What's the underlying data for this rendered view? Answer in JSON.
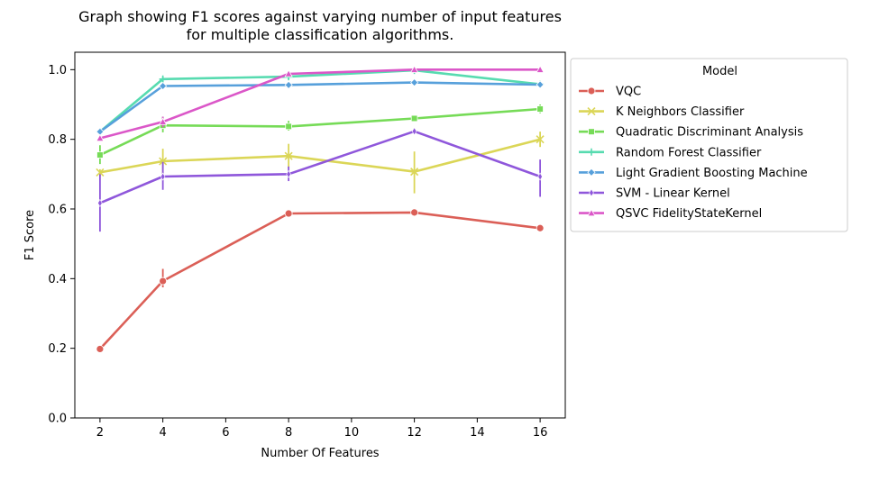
{
  "chart_data": {
    "type": "line",
    "title": "Graph showing F1 scores against varying number of input features\nfor multiple classification algorithms.",
    "xlabel": "Number Of Features",
    "ylabel": "F1 Score",
    "xlim": [
      1.2,
      16.8
    ],
    "ylim": [
      0.0,
      1.05
    ],
    "xticks": [
      2,
      4,
      6,
      8,
      10,
      12,
      14,
      16
    ],
    "yticks": [
      0.0,
      0.2,
      0.4,
      0.6,
      0.8,
      1.0
    ],
    "x": [
      2,
      4,
      8,
      12,
      16
    ],
    "legend": {
      "title": "Model",
      "placement": "outside-right-top"
    },
    "series": [
      {
        "name": "VQC",
        "color": "#db5f57",
        "marker": "circle",
        "values": [
          0.198,
          0.393,
          0.587,
          0.59,
          0.545
        ],
        "err": [
          [
            0.19,
            0.207
          ],
          [
            0.375,
            0.428
          ],
          [
            0.581,
            0.592
          ],
          [
            0.585,
            0.595
          ],
          [
            0.54,
            0.55
          ]
        ]
      },
      {
        "name": "K Neighbors Classifier",
        "color": "#dbd657",
        "marker": "x",
        "values": [
          0.705,
          0.737,
          0.752,
          0.707,
          0.8
        ],
        "err": [
          [
            0.694,
            0.714
          ],
          [
            0.7,
            0.773
          ],
          [
            0.717,
            0.787
          ],
          [
            0.645,
            0.765
          ],
          [
            0.778,
            0.822
          ]
        ]
      },
      {
        "name": "Quadratic Discriminant Analysis",
        "color": "#76db57",
        "marker": "square",
        "values": [
          0.755,
          0.84,
          0.837,
          0.86,
          0.887
        ],
        "err": [
          [
            0.729,
            0.783
          ],
          [
            0.82,
            0.865
          ],
          [
            0.825,
            0.853
          ],
          [
            0.855,
            0.865
          ],
          [
            0.875,
            0.9
          ]
        ]
      },
      {
        "name": "Random Forest Classifier",
        "color": "#57dbb0",
        "marker": "plus",
        "values": [
          0.822,
          0.973,
          0.98,
          0.998,
          0.958
        ],
        "err": [
          [
            0.815,
            0.829
          ],
          [
            0.965,
            0.98
          ],
          [
            0.973,
            0.987
          ],
          [
            0.993,
            1.0
          ],
          [
            0.951,
            0.965
          ]
        ]
      },
      {
        "name": "Light Gradient Boosting Machine",
        "color": "#57a0db",
        "marker": "diamond",
        "values": [
          0.822,
          0.953,
          0.956,
          0.963,
          0.957
        ],
        "err": [
          [
            0.815,
            0.829
          ],
          [
            0.946,
            0.96
          ],
          [
            0.95,
            0.962
          ],
          [
            0.957,
            0.969
          ],
          [
            0.952,
            0.962
          ]
        ]
      },
      {
        "name": "SVM - Linear Kernel",
        "color": "#8f57db",
        "marker": "thin-diamond",
        "values": [
          0.617,
          0.693,
          0.7,
          0.823,
          0.693
        ],
        "err": [
          [
            0.535,
            0.7
          ],
          [
            0.655,
            0.735
          ],
          [
            0.68,
            0.722
          ],
          [
            0.815,
            0.831
          ],
          [
            0.635,
            0.742
          ]
        ]
      },
      {
        "name": "QSVC FidelityStateKernel",
        "color": "#db57c8",
        "marker": "triangle",
        "values": [
          0.803,
          0.85,
          0.988,
          1.0,
          1.0
        ],
        "err": [
          [
            0.795,
            0.811
          ],
          [
            0.835,
            0.865
          ],
          [
            0.982,
            0.994
          ],
          [
            0.996,
            1.004
          ],
          [
            0.996,
            1.004
          ]
        ]
      }
    ]
  }
}
